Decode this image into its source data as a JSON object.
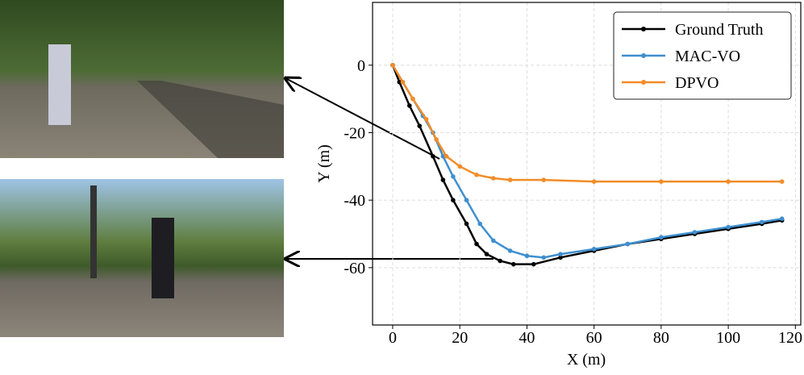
{
  "chart_data": {
    "type": "line",
    "xlabel": "X (m)",
    "ylabel": "Y (m)",
    "xlim": [
      -6,
      121.6
    ],
    "ylim": [
      -77,
      18.6
    ],
    "xticks": [
      0,
      20,
      40,
      60,
      80,
      100,
      120
    ],
    "yticks": [
      -60,
      -40,
      -20,
      0
    ],
    "grid": true,
    "legend": "upper right",
    "series": [
      {
        "name": "Ground Truth",
        "color": "#000000",
        "x": [
          0,
          2,
          5,
          8,
          12,
          15,
          18,
          22,
          25,
          28,
          32,
          36,
          42,
          50,
          60,
          70,
          80,
          90,
          100,
          110,
          116
        ],
        "values": [
          0,
          -5,
          -12,
          -18,
          -27,
          -34,
          -40,
          -47,
          -53,
          -56,
          -58,
          -59,
          -59,
          -57,
          -55,
          -53,
          -51.5,
          -50,
          -48.5,
          -47,
          -46
        ]
      },
      {
        "name": "MAC-VO",
        "color": "#3f8fcf",
        "x": [
          0,
          3,
          6,
          9,
          12,
          15,
          18,
          22,
          26,
          30,
          35,
          40,
          45,
          50,
          60,
          70,
          80,
          90,
          100,
          110,
          116
        ],
        "values": [
          0,
          -5,
          -10,
          -15,
          -20,
          -27,
          -33,
          -40,
          -47,
          -52,
          -55,
          -56.5,
          -57,
          -56,
          -54.5,
          -53,
          -51,
          -49.5,
          -48,
          -46.5,
          -45.5
        ]
      },
      {
        "name": "DPVO",
        "color": "#f28c28",
        "x": [
          0,
          3,
          6,
          10,
          13,
          16,
          20,
          25,
          30,
          35,
          45,
          60,
          80,
          100,
          116
        ],
        "values": [
          0,
          -5,
          -10,
          -16,
          -22,
          -27,
          -30,
          -32.5,
          -33.5,
          -34,
          -34,
          -34.5,
          -34.5,
          -34.5,
          -34.5
        ]
      }
    ]
  }
}
